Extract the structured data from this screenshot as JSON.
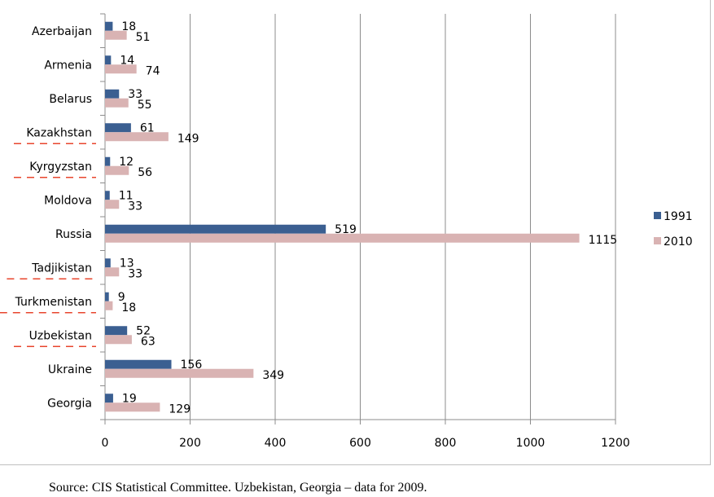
{
  "chart_data": {
    "type": "bar",
    "orientation": "horizontal",
    "categories": [
      "Azerbaijan",
      "Armenia",
      "Belarus",
      "Kazakhstan",
      "Kyrgyzstan",
      "Moldova",
      "Russia",
      "Tadjikistan",
      "Turkmenistan",
      "Uzbekistan",
      "Ukraine",
      "Georgia"
    ],
    "series": [
      {
        "name": "1991",
        "color": "#3b5f91",
        "values": [
          18,
          14,
          33,
          61,
          12,
          11,
          519,
          13,
          9,
          52,
          156,
          19
        ]
      },
      {
        "name": "2010",
        "color": "#d9b3b3",
        "values": [
          51,
          74,
          55,
          149,
          56,
          33,
          1115,
          33,
          18,
          63,
          349,
          129
        ]
      }
    ],
    "xlim": [
      0,
      1200
    ],
    "xticks": [
      "0",
      "200",
      "400",
      "600",
      "800",
      "1000",
      "1200"
    ],
    "grid": "vertical",
    "legend_position": "right",
    "spellcheck_underlined": [
      "Kazakhstan",
      "Kyrgyzstan",
      "Tadjikistan",
      "Turkmenistan",
      "Uzbekistan"
    ]
  },
  "source_note": "Source: CIS Statistical Committee. Uzbekistan, Georgia – data for 2009."
}
